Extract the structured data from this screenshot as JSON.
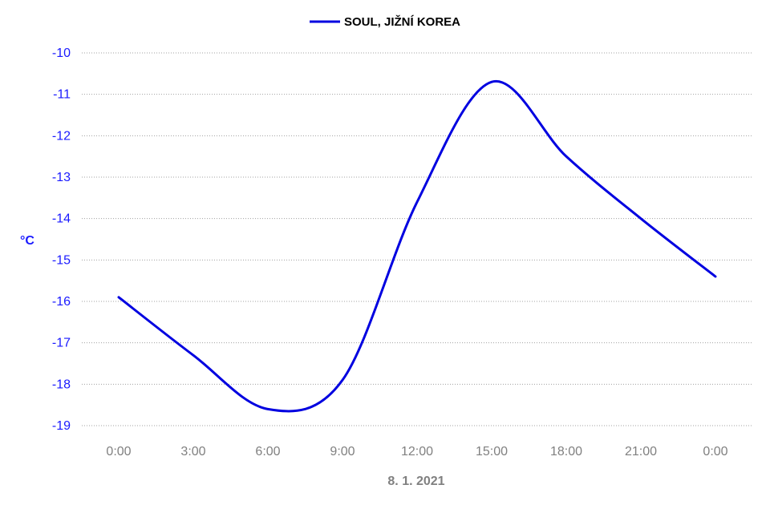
{
  "chart_data": {
    "type": "line",
    "title": "",
    "xlabel": "8. 1. 2021",
    "ylabel": "°C",
    "x_tick_labels": [
      "0:00",
      "3:00",
      "6:00",
      "9:00",
      "12:00",
      "15:00",
      "18:00",
      "21:00",
      "0:00"
    ],
    "ylim": [
      -19,
      -10
    ],
    "y_ticks": [
      -10,
      -11,
      -12,
      -13,
      -14,
      -15,
      -16,
      -17,
      -18,
      -19
    ],
    "grid": "horizontal-dotted",
    "legend_position": "top-center",
    "series": [
      {
        "name": "SOUL, JIŽNÍ KOREA",
        "color": "#0000e0",
        "x_hours": [
          0,
          3,
          6,
          9,
          12,
          15,
          18,
          21,
          24
        ],
        "values": [
          -15.9,
          -17.3,
          -18.6,
          -17.9,
          -13.6,
          -10.7,
          -12.5,
          -14.0,
          -15.4
        ]
      }
    ],
    "colors": {
      "axis_text": "#1a1aff",
      "tick_text": "#808080",
      "grid": "#a0a0a0",
      "xlabel": "#808080"
    }
  }
}
